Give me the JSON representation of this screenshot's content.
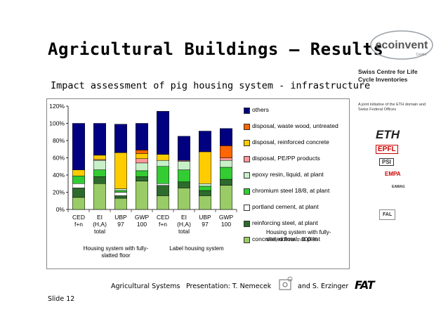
{
  "header": {
    "title": "Agricultural Buildings — Results",
    "subtitle": "Impact assessment of pig housing system - infrastructure"
  },
  "brand": {
    "logo_text": "ecoinvent",
    "logo_sub": "Centre",
    "swiss_centre": "Swiss Centre for Life Cycle Inventories",
    "joint": "A joint initiative of the ETH domain and Swiss Federal Offices",
    "partners": [
      "ETH",
      "EPFL",
      "PSI",
      "EMPA",
      "EAWAG",
      "FAL"
    ]
  },
  "footer": {
    "left": "Agricultural Systems",
    "presentation": "Presentation: T. Nemecek",
    "and": "and S. Erzinger",
    "slide": "Slide 12",
    "logo": "FAT"
  },
  "chart_data": {
    "type": "stacked-bar",
    "ylim": [
      0,
      120
    ],
    "yticks": [
      "0%",
      "20%",
      "40%",
      "60%",
      "80%",
      "100%",
      "120%"
    ],
    "categories": [
      [
        "CED",
        "f+n",
        ""
      ],
      [
        "EI",
        "(H,A)",
        "total"
      ],
      [
        "UBP",
        "97",
        ""
      ],
      [
        "GWP",
        "100",
        ""
      ],
      [
        "CED",
        "f+n",
        ""
      ],
      [
        "EI",
        "(H,A)",
        "total"
      ],
      [
        "UBP",
        "97",
        ""
      ],
      [
        "GWP",
        "100",
        ""
      ]
    ],
    "group_labels": [
      "Housing system with fully-slatted floor",
      "Label housing system"
    ],
    "note": "Housing system with fully-slatted floor = 100 %",
    "series": [
      {
        "name": "concrete, normal, at plant",
        "color": "#99cc66",
        "values": [
          14,
          30,
          13,
          33,
          16,
          25,
          16,
          28
        ]
      },
      {
        "name": "reinforcing steel, at plant",
        "color": "#2d6b2d",
        "values": [
          11,
          8,
          3,
          5,
          12,
          7,
          6,
          7
        ]
      },
      {
        "name": "portland cement, at plant",
        "color": "#ffffff",
        "values": [
          5,
          0,
          4,
          0,
          2,
          0,
          0,
          0
        ]
      },
      {
        "name": "chromium steel 18/8, at plant",
        "color": "#33cc33",
        "values": [
          9,
          8,
          2,
          7,
          20,
          14,
          5,
          14
        ]
      },
      {
        "name": "epoxy resin, liquid, at plant",
        "color": "#c8f0c8",
        "values": [
          0,
          11,
          2,
          9,
          7,
          10,
          3,
          8
        ]
      },
      {
        "name": "disposal, PE/PP products",
        "color": "#ff9999",
        "values": [
          0,
          1,
          0,
          5,
          0,
          1,
          0,
          3
        ]
      },
      {
        "name": "disposal, reinforced concrete",
        "color": "#ffcc00",
        "values": [
          7,
          5,
          42,
          6,
          7,
          0,
          37,
          0
        ]
      },
      {
        "name": "disposal, waste wood, untreated",
        "color": "#ff6600",
        "values": [
          0,
          0,
          0,
          4,
          0,
          0,
          0,
          14
        ]
      },
      {
        "name": "others",
        "color": "#000080",
        "values": [
          54,
          37,
          33,
          31,
          50,
          28,
          24,
          20
        ]
      }
    ],
    "legend_order": [
      "others",
      "disposal, waste wood, untreated",
      "disposal, reinforced concrete",
      "disposal, PE/PP products",
      "epoxy resin, liquid, at plant",
      "chromium steel 18/8, at plant",
      "portland cement, at plant",
      "reinforcing steel, at plant",
      "concrete, normal, at plant"
    ],
    "legend_colors": [
      "#000080",
      "#ff6600",
      "#ffcc00",
      "#ff9999",
      "#c8f0c8",
      "#33cc33",
      "#ffffff",
      "#2d6b2d",
      "#99cc66"
    ]
  }
}
